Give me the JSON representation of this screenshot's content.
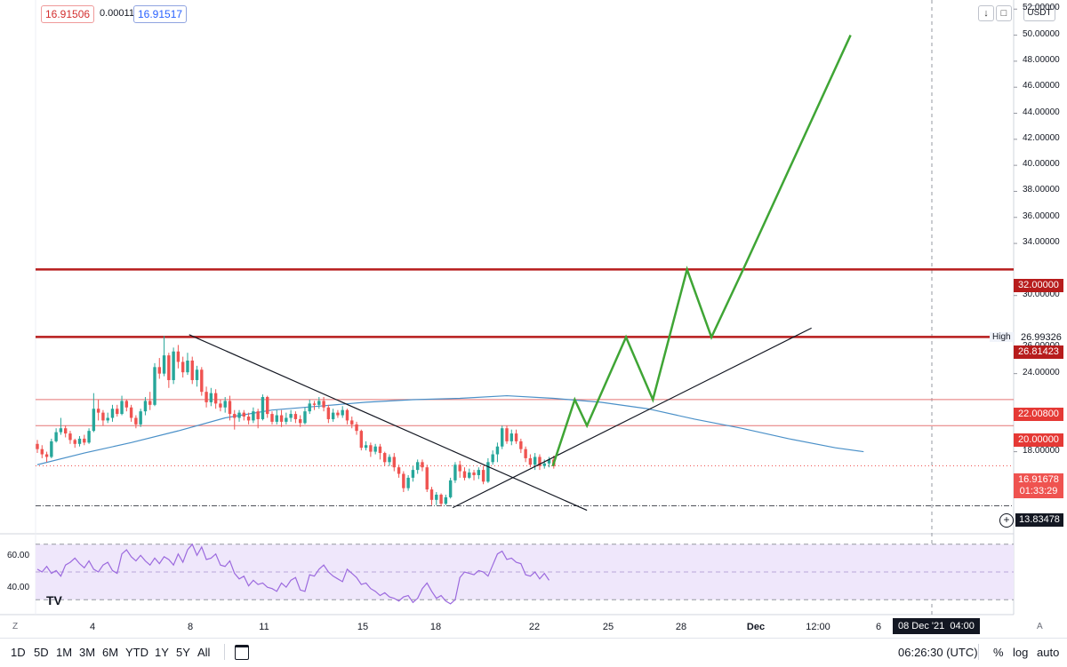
{
  "header": {
    "bid": "16.91506",
    "spread": "0.00011",
    "ask": "16.91517",
    "currency": "USDT",
    "down_arrow_icon": "arrow-down-icon",
    "fullscreen_icon": "fullscreen-icon"
  },
  "colors": {
    "up": "#26a69a",
    "down": "#ef5350",
    "resistance": "#b71c1c",
    "level": "#e57373",
    "projection": "#3fa535",
    "ma": "#4a90c8",
    "rsi": "#9c6ade",
    "rsi_band": "#efe7fb"
  },
  "price_axis": {
    "labels": [
      "52.00000",
      "50.00000",
      "48.00000",
      "46.00000",
      "44.00000",
      "42.00000",
      "40.00000",
      "38.00000",
      "36.00000",
      "34.00000",
      "30.00000",
      "26.00000",
      "24.00000",
      "18.00000"
    ],
    "high_label": "High",
    "high_value": "26.99326",
    "tags": {
      "r32": "32.00000",
      "r26": "26.81423",
      "l22": "22.00800",
      "l20": "20.00000",
      "last": "16.91678",
      "countdown": "01:33:29",
      "low": "13.83478"
    }
  },
  "time_axis": {
    "labels": [
      "4",
      "8",
      "11",
      "15",
      "18",
      "22",
      "25",
      "28",
      "Dec",
      "12:00",
      "6"
    ],
    "crosshair_label": "08 Dec '21",
    "crosshair_time": "04:00",
    "auto_scale_label": "A",
    "goto_label": "Z"
  },
  "rsi_axis": {
    "labels": [
      "60.00",
      "40.00"
    ],
    "logo": "TV"
  },
  "bottom_bar": {
    "timeframes": [
      "1D",
      "5D",
      "1M",
      "3M",
      "6M",
      "YTD",
      "1Y",
      "5Y",
      "All"
    ],
    "compare_icon": "calendar-range-icon",
    "clock": "06:26:30 (UTC)",
    "percent": "%",
    "log": "log",
    "auto": "auto"
  },
  "chart_data": {
    "type": "candlestick",
    "price_range": [
      11.9,
      52.7
    ],
    "x_axis_labels": [
      "4",
      "8",
      "11",
      "15",
      "18",
      "22",
      "25",
      "28",
      "Dec",
      "12:00",
      "6"
    ],
    "candles": [
      [
        18.6,
        18.2,
        18.9,
        17.9
      ],
      [
        18.2,
        17.8,
        18.5,
        17.5
      ],
      [
        17.8,
        17.6,
        18.0,
        17.2
      ],
      [
        17.6,
        18.8,
        19.0,
        17.5
      ],
      [
        18.8,
        19.5,
        19.8,
        18.7
      ],
      [
        19.5,
        19.8,
        20.6,
        19.3
      ],
      [
        19.8,
        19.4,
        20.0,
        19.1
      ],
      [
        19.4,
        18.9,
        19.6,
        18.6
      ],
      [
        18.9,
        18.6,
        19.0,
        18.3
      ],
      [
        18.6,
        19.0,
        19.2,
        18.4
      ],
      [
        19.0,
        18.7,
        19.3,
        18.5
      ],
      [
        18.7,
        19.6,
        19.8,
        18.6
      ],
      [
        19.6,
        21.3,
        22.5,
        19.5
      ],
      [
        21.3,
        21.0,
        22.0,
        20.4
      ],
      [
        21.0,
        20.4,
        21.2,
        20.0
      ],
      [
        20.4,
        20.6,
        21.0,
        20.2
      ],
      [
        20.6,
        21.3,
        21.6,
        20.3
      ],
      [
        21.3,
        20.9,
        21.6,
        20.7
      ],
      [
        20.9,
        21.9,
        22.3,
        20.8
      ],
      [
        21.9,
        21.4,
        22.0,
        21.1
      ],
      [
        21.4,
        20.6,
        21.6,
        20.3
      ],
      [
        20.6,
        20.1,
        20.8,
        19.8
      ],
      [
        20.1,
        21.1,
        21.3,
        19.9
      ],
      [
        21.1,
        21.9,
        22.2,
        20.8
      ],
      [
        21.9,
        21.6,
        22.6,
        21.2
      ],
      [
        21.6,
        24.5,
        24.8,
        21.5
      ],
      [
        24.5,
        24.0,
        25.2,
        23.6
      ],
      [
        24.0,
        25.4,
        26.9,
        23.8
      ],
      [
        25.4,
        23.5,
        25.6,
        22.9
      ],
      [
        23.5,
        25.7,
        26.0,
        23.2
      ],
      [
        25.7,
        24.9,
        26.2,
        24.4
      ],
      [
        24.9,
        24.1,
        25.3,
        23.7
      ],
      [
        24.1,
        25.0,
        25.6,
        23.9
      ],
      [
        25.0,
        23.5,
        25.3,
        23.2
      ],
      [
        23.5,
        24.3,
        24.6,
        23.0
      ],
      [
        24.3,
        22.6,
        24.5,
        22.3
      ],
      [
        22.6,
        21.8,
        23.0,
        21.4
      ],
      [
        21.8,
        22.5,
        22.9,
        21.5
      ],
      [
        22.5,
        21.7,
        22.8,
        21.3
      ],
      [
        21.7,
        21.4,
        22.0,
        21.1
      ],
      [
        21.4,
        21.9,
        22.2,
        21.0
      ],
      [
        21.9,
        20.9,
        22.3,
        20.4
      ],
      [
        20.9,
        20.6,
        21.2,
        19.7
      ],
      [
        20.6,
        21.0,
        21.2,
        20.3
      ],
      [
        21.0,
        20.7,
        21.2,
        20.4
      ],
      [
        20.7,
        20.4,
        21.0,
        20.1
      ],
      [
        20.4,
        21.1,
        21.4,
        20.2
      ],
      [
        21.1,
        20.5,
        21.3,
        19.8
      ],
      [
        20.5,
        22.2,
        22.4,
        20.4
      ],
      [
        22.2,
        20.9,
        22.3,
        20.6
      ],
      [
        20.9,
        20.3,
        21.1,
        20.1
      ],
      [
        20.3,
        20.8,
        21.2,
        20.1
      ],
      [
        20.8,
        20.3,
        21.2,
        19.9
      ],
      [
        20.3,
        20.6,
        21.0,
        20.1
      ],
      [
        20.6,
        20.9,
        21.2,
        20.3
      ],
      [
        20.9,
        20.5,
        21.1,
        20.2
      ],
      [
        20.5,
        20.2,
        20.8,
        19.9
      ],
      [
        20.2,
        21.1,
        21.4,
        20.1
      ],
      [
        21.1,
        21.7,
        22.0,
        20.9
      ],
      [
        21.7,
        21.6,
        21.9,
        21.2
      ],
      [
        21.6,
        21.9,
        22.2,
        21.3
      ],
      [
        21.9,
        21.4,
        22.2,
        21.1
      ],
      [
        21.4,
        20.5,
        21.6,
        20.2
      ],
      [
        20.5,
        21.0,
        21.3,
        20.3
      ],
      [
        21.0,
        20.8,
        21.2,
        20.6
      ],
      [
        20.8,
        21.2,
        21.5,
        20.6
      ],
      [
        21.2,
        20.4,
        21.3,
        20.1
      ],
      [
        20.4,
        20.1,
        20.7,
        19.8
      ],
      [
        20.1,
        19.6,
        20.3,
        19.3
      ],
      [
        19.6,
        18.3,
        19.7,
        18.1
      ],
      [
        18.3,
        18.5,
        18.8,
        18.1
      ],
      [
        18.5,
        18.0,
        18.7,
        17.6
      ],
      [
        18.0,
        18.4,
        18.6,
        17.8
      ],
      [
        18.4,
        17.9,
        18.6,
        17.4
      ],
      [
        17.9,
        17.2,
        18.0,
        16.9
      ],
      [
        17.2,
        17.6,
        17.8,
        16.9
      ],
      [
        17.6,
        16.8,
        17.9,
        16.5
      ],
      [
        16.8,
        16.3,
        17.0,
        16.0
      ],
      [
        16.3,
        15.2,
        16.5,
        14.9
      ],
      [
        15.2,
        16.0,
        16.2,
        15.0
      ],
      [
        16.0,
        16.6,
        16.9,
        15.7
      ],
      [
        16.6,
        17.2,
        17.4,
        16.3
      ],
      [
        17.2,
        16.8,
        17.4,
        16.5
      ],
      [
        16.8,
        15.1,
        17.0,
        14.9
      ],
      [
        15.1,
        14.3,
        15.3,
        13.9
      ],
      [
        14.3,
        14.7,
        14.9,
        13.9
      ],
      [
        14.7,
        14.0,
        14.8,
        13.8
      ],
      [
        14.0,
        14.5,
        14.7,
        13.9
      ],
      [
        14.5,
        15.8,
        16.0,
        14.4
      ],
      [
        15.8,
        17.0,
        17.2,
        15.6
      ],
      [
        17.0,
        16.5,
        17.3,
        16.0
      ],
      [
        16.5,
        16.0,
        16.8,
        15.8
      ],
      [
        16.0,
        16.4,
        16.7,
        15.9
      ],
      [
        16.4,
        16.2,
        16.6,
        15.8
      ],
      [
        16.2,
        16.6,
        16.8,
        15.9
      ],
      [
        16.6,
        15.7,
        16.9,
        15.5
      ],
      [
        15.7,
        17.2,
        17.5,
        15.6
      ],
      [
        17.2,
        17.8,
        18.1,
        17.0
      ],
      [
        17.8,
        18.4,
        18.7,
        17.2
      ],
      [
        18.4,
        19.8,
        20.0,
        18.2
      ],
      [
        19.8,
        18.8,
        20.0,
        18.6
      ],
      [
        18.8,
        19.4,
        19.7,
        18.5
      ],
      [
        19.4,
        18.8,
        19.7,
        18.6
      ],
      [
        18.8,
        18.2,
        19.0,
        17.9
      ],
      [
        18.2,
        17.5,
        18.4,
        17.2
      ],
      [
        17.5,
        17.0,
        17.8,
        16.8
      ],
      [
        17.0,
        17.6,
        17.9,
        16.6
      ],
      [
        17.6,
        16.9,
        17.8,
        16.6
      ],
      [
        16.9,
        17.1,
        17.4,
        16.7
      ],
      [
        17.1,
        17.4,
        17.6,
        16.8
      ],
      [
        17.4,
        16.9,
        17.7,
        16.7
      ]
    ],
    "moving_average": [
      [
        0,
        17.0
      ],
      [
        10,
        17.9
      ],
      [
        20,
        18.7
      ],
      [
        30,
        19.6
      ],
      [
        40,
        20.6
      ],
      [
        50,
        21.2
      ],
      [
        60,
        21.5
      ],
      [
        70,
        21.8
      ],
      [
        80,
        22.0
      ],
      [
        90,
        22.1
      ],
      [
        100,
        22.3
      ],
      [
        110,
        22.1
      ],
      [
        120,
        21.8
      ],
      [
        130,
        21.3
      ],
      [
        140,
        20.5
      ],
      [
        150,
        19.8
      ],
      [
        160,
        19.0
      ],
      [
        170,
        18.3
      ],
      [
        176,
        18.0
      ]
    ],
    "horizontal_levels": [
      {
        "value": 32.0,
        "kind": "resistance"
      },
      {
        "value": 26.81423,
        "kind": "resistance"
      },
      {
        "value": 22.008,
        "kind": "level"
      },
      {
        "value": 20.0,
        "kind": "level"
      }
    ],
    "last_price": 16.91678,
    "low_price": 13.83478,
    "trendlines": [
      {
        "from": [
          8.0,
          26.99
        ],
        "to": [
          24.3,
          13.5
        ]
      },
      {
        "from": [
          18.8,
          13.7
        ],
        "to": [
          33.5,
          27.5
        ]
      }
    ],
    "projection_path": [
      [
        22.9,
        16.9
      ],
      [
        23.8,
        22.0
      ],
      [
        24.3,
        20.0
      ],
      [
        25.9,
        26.8
      ],
      [
        27.0,
        22.0
      ],
      [
        28.4,
        32.0
      ],
      [
        29.4,
        26.8
      ],
      [
        30.7,
        32.0
      ],
      [
        35.1,
        50.0
      ]
    ],
    "rsi": {
      "bands": [
        70,
        30
      ],
      "mid": 50,
      "values": [
        52,
        50,
        54,
        49,
        51,
        47,
        55,
        57,
        60,
        56,
        53,
        58,
        52,
        50,
        55,
        57,
        51,
        49,
        63,
        66,
        61,
        58,
        62,
        58,
        55,
        60,
        56,
        61,
        59,
        55,
        63,
        57,
        66,
        70,
        62,
        68,
        59,
        60,
        63,
        55,
        54,
        58,
        49,
        45,
        47,
        40,
        44,
        41,
        42,
        39,
        38,
        36,
        42,
        39,
        44,
        46,
        37,
        36,
        48,
        47,
        52,
        55,
        50,
        47,
        45,
        43,
        52,
        49,
        46,
        41,
        42,
        38,
        36,
        33,
        35,
        32,
        31,
        29,
        32,
        33,
        28,
        31,
        38,
        42,
        36,
        31,
        33,
        29,
        27,
        30,
        46,
        50,
        49,
        48,
        51,
        50,
        47,
        55,
        63,
        65,
        59,
        60,
        57,
        56,
        48,
        47,
        50,
        45,
        49,
        44
      ]
    }
  }
}
